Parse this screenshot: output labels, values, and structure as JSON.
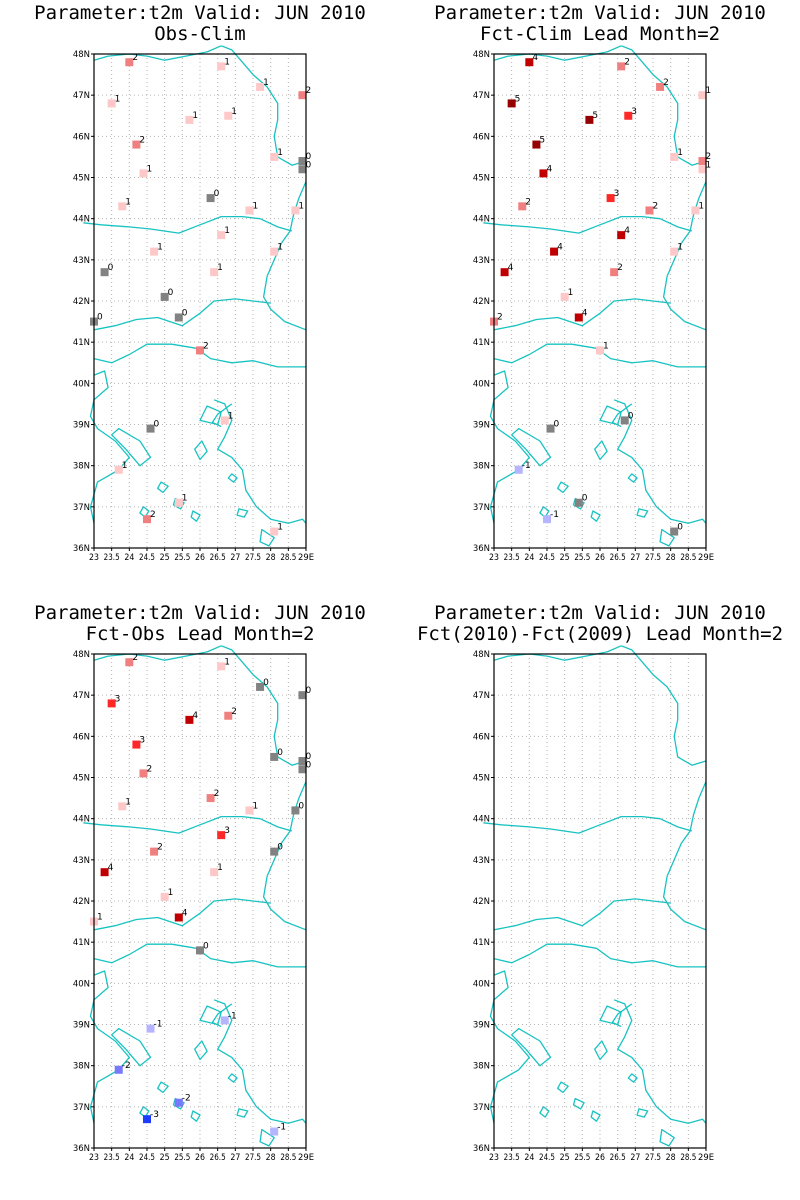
{
  "panels": [
    {
      "title_line1": "Parameter:t2m Valid: JUN 2010",
      "title_line2": "Obs-Clim",
      "stations": [
        {
          "lon": 24.0,
          "lat": 47.8,
          "v": 2
        },
        {
          "lon": 26.6,
          "lat": 47.7,
          "v": 1
        },
        {
          "lon": 27.7,
          "lat": 47.2,
          "v": 1
        },
        {
          "lon": 28.9,
          "lat": 47.0,
          "v": 2
        },
        {
          "lon": 23.5,
          "lat": 46.8,
          "v": 1
        },
        {
          "lon": 25.7,
          "lat": 46.4,
          "v": 1
        },
        {
          "lon": 26.8,
          "lat": 46.5,
          "v": 1
        },
        {
          "lon": 24.2,
          "lat": 45.8,
          "v": 2
        },
        {
          "lon": 28.1,
          "lat": 45.5,
          "v": 1
        },
        {
          "lon": 24.4,
          "lat": 45.1,
          "v": 1
        },
        {
          "lon": 28.9,
          "lat": 45.4,
          "v": 0
        },
        {
          "lon": 28.9,
          "lat": 45.2,
          "v": 0
        },
        {
          "lon": 26.3,
          "lat": 44.5,
          "v": 0
        },
        {
          "lon": 23.8,
          "lat": 44.3,
          "v": 1
        },
        {
          "lon": 27.4,
          "lat": 44.2,
          "v": 1
        },
        {
          "lon": 28.7,
          "lat": 44.2,
          "v": 1
        },
        {
          "lon": 26.6,
          "lat": 43.6,
          "v": 1
        },
        {
          "lon": 24.7,
          "lat": 43.2,
          "v": 1
        },
        {
          "lon": 28.1,
          "lat": 43.2,
          "v": 1
        },
        {
          "lon": 23.3,
          "lat": 42.7,
          "v": 0
        },
        {
          "lon": 26.4,
          "lat": 42.7,
          "v": 1
        },
        {
          "lon": 25.0,
          "lat": 42.1,
          "v": 0
        },
        {
          "lon": 25.4,
          "lat": 41.6,
          "v": 0
        },
        {
          "lon": 23.0,
          "lat": 41.5,
          "v": 0
        },
        {
          "lon": 26.0,
          "lat": 40.8,
          "v": 2
        },
        {
          "lon": 24.6,
          "lat": 38.9,
          "v": 0
        },
        {
          "lon": 26.7,
          "lat": 39.1,
          "v": 1
        },
        {
          "lon": 23.7,
          "lat": 37.9,
          "v": 1
        },
        {
          "lon": 25.4,
          "lat": 37.1,
          "v": 1
        },
        {
          "lon": 24.5,
          "lat": 36.7,
          "v": 2
        },
        {
          "lon": 28.1,
          "lat": 36.4,
          "v": 1
        }
      ]
    },
    {
      "title_line1": "Parameter:t2m Valid: JUN 2010",
      "title_line2": "Fct-Clim Lead Month=2",
      "stations": [
        {
          "lon": 24.0,
          "lat": 47.8,
          "v": 4
        },
        {
          "lon": 26.6,
          "lat": 47.7,
          "v": 2
        },
        {
          "lon": 27.7,
          "lat": 47.2,
          "v": 2
        },
        {
          "lon": 28.9,
          "lat": 47.0,
          "v": 1
        },
        {
          "lon": 23.5,
          "lat": 46.8,
          "v": 5
        },
        {
          "lon": 25.7,
          "lat": 46.4,
          "v": 5
        },
        {
          "lon": 26.8,
          "lat": 46.5,
          "v": 3
        },
        {
          "lon": 24.2,
          "lat": 45.8,
          "v": 5
        },
        {
          "lon": 28.1,
          "lat": 45.5,
          "v": 1
        },
        {
          "lon": 24.4,
          "lat": 45.1,
          "v": 4
        },
        {
          "lon": 28.9,
          "lat": 45.4,
          "v": 2
        },
        {
          "lon": 28.9,
          "lat": 45.2,
          "v": 1
        },
        {
          "lon": 26.3,
          "lat": 44.5,
          "v": 3
        },
        {
          "lon": 23.8,
          "lat": 44.3,
          "v": 2
        },
        {
          "lon": 27.4,
          "lat": 44.2,
          "v": 2
        },
        {
          "lon": 28.7,
          "lat": 44.2,
          "v": 1
        },
        {
          "lon": 26.6,
          "lat": 43.6,
          "v": 4
        },
        {
          "lon": 24.7,
          "lat": 43.2,
          "v": 4
        },
        {
          "lon": 28.1,
          "lat": 43.2,
          "v": 1
        },
        {
          "lon": 23.3,
          "lat": 42.7,
          "v": 4
        },
        {
          "lon": 26.4,
          "lat": 42.7,
          "v": 2
        },
        {
          "lon": 25.0,
          "lat": 42.1,
          "v": 1
        },
        {
          "lon": 25.4,
          "lat": 41.6,
          "v": 4
        },
        {
          "lon": 23.0,
          "lat": 41.5,
          "v": 2
        },
        {
          "lon": 26.0,
          "lat": 40.8,
          "v": 1
        },
        {
          "lon": 24.6,
          "lat": 38.9,
          "v": 0
        },
        {
          "lon": 26.7,
          "lat": 39.1,
          "v": 0
        },
        {
          "lon": 23.7,
          "lat": 37.9,
          "v": -1
        },
        {
          "lon": 25.4,
          "lat": 37.1,
          "v": 0
        },
        {
          "lon": 24.5,
          "lat": 36.7,
          "v": -1
        },
        {
          "lon": 28.1,
          "lat": 36.4,
          "v": 0
        }
      ]
    },
    {
      "title_line1": "Parameter:t2m Valid: JUN 2010",
      "title_line2": "Fct-Obs Lead Month=2",
      "stations": [
        {
          "lon": 24.0,
          "lat": 47.8,
          "v": 2
        },
        {
          "lon": 26.6,
          "lat": 47.7,
          "v": 1
        },
        {
          "lon": 27.7,
          "lat": 47.2,
          "v": 0
        },
        {
          "lon": 28.9,
          "lat": 47.0,
          "v": 0
        },
        {
          "lon": 23.5,
          "lat": 46.8,
          "v": 3
        },
        {
          "lon": 25.7,
          "lat": 46.4,
          "v": 4
        },
        {
          "lon": 26.8,
          "lat": 46.5,
          "v": 2
        },
        {
          "lon": 24.2,
          "lat": 45.8,
          "v": 3
        },
        {
          "lon": 28.1,
          "lat": 45.5,
          "v": 0
        },
        {
          "lon": 24.4,
          "lat": 45.1,
          "v": 2
        },
        {
          "lon": 28.9,
          "lat": 45.4,
          "v": 0
        },
        {
          "lon": 28.9,
          "lat": 45.2,
          "v": 0
        },
        {
          "lon": 26.3,
          "lat": 44.5,
          "v": 2
        },
        {
          "lon": 23.8,
          "lat": 44.3,
          "v": 1
        },
        {
          "lon": 27.4,
          "lat": 44.2,
          "v": 1
        },
        {
          "lon": 28.7,
          "lat": 44.2,
          "v": 0
        },
        {
          "lon": 26.6,
          "lat": 43.6,
          "v": 3
        },
        {
          "lon": 24.7,
          "lat": 43.2,
          "v": 2
        },
        {
          "lon": 28.1,
          "lat": 43.2,
          "v": 0
        },
        {
          "lon": 23.3,
          "lat": 42.7,
          "v": 4
        },
        {
          "lon": 26.4,
          "lat": 42.7,
          "v": 1
        },
        {
          "lon": 25.0,
          "lat": 42.1,
          "v": 1
        },
        {
          "lon": 25.4,
          "lat": 41.6,
          "v": 4
        },
        {
          "lon": 23.0,
          "lat": 41.5,
          "v": 1
        },
        {
          "lon": 26.0,
          "lat": 40.8,
          "v": 0
        },
        {
          "lon": 24.6,
          "lat": 38.9,
          "v": -1
        },
        {
          "lon": 26.7,
          "lat": 39.1,
          "v": -1
        },
        {
          "lon": 23.7,
          "lat": 37.9,
          "v": -2
        },
        {
          "lon": 25.4,
          "lat": 37.1,
          "v": -2
        },
        {
          "lon": 24.5,
          "lat": 36.7,
          "v": -3
        },
        {
          "lon": 28.1,
          "lat": 36.4,
          "v": -1
        }
      ]
    },
    {
      "title_line1": "Parameter:t2m Valid: JUN 2010",
      "title_line2": "Fct(2010)-Fct(2009) Lead Month=2",
      "stations": []
    }
  ],
  "axes": {
    "x_ticks": [
      "23",
      "23.5",
      "24",
      "24.5",
      "25",
      "25.5",
      "26",
      "26.5",
      "27",
      "27.5",
      "28",
      "28.5",
      "29E"
    ],
    "y_ticks": [
      "36N",
      "37N",
      "38N",
      "39N",
      "40N",
      "41N",
      "42N",
      "43N",
      "44N",
      "45N",
      "46N",
      "47N",
      "48N"
    ],
    "lon_range": [
      23,
      29
    ],
    "lat_range": [
      36,
      48
    ],
    "grid": true
  },
  "colors": {
    "coast": "#19c2c2",
    "grid": "#b4b4b4",
    "value_colors": {
      "-3": "#1e3cff",
      "-2": "#7878ff",
      "-1": "#b4b4ff",
      "0": "#828282",
      "1": "#ffc8c8",
      "2": "#f08080",
      "3": "#ff2828",
      "4": "#c00000",
      "5": "#960000"
    }
  }
}
